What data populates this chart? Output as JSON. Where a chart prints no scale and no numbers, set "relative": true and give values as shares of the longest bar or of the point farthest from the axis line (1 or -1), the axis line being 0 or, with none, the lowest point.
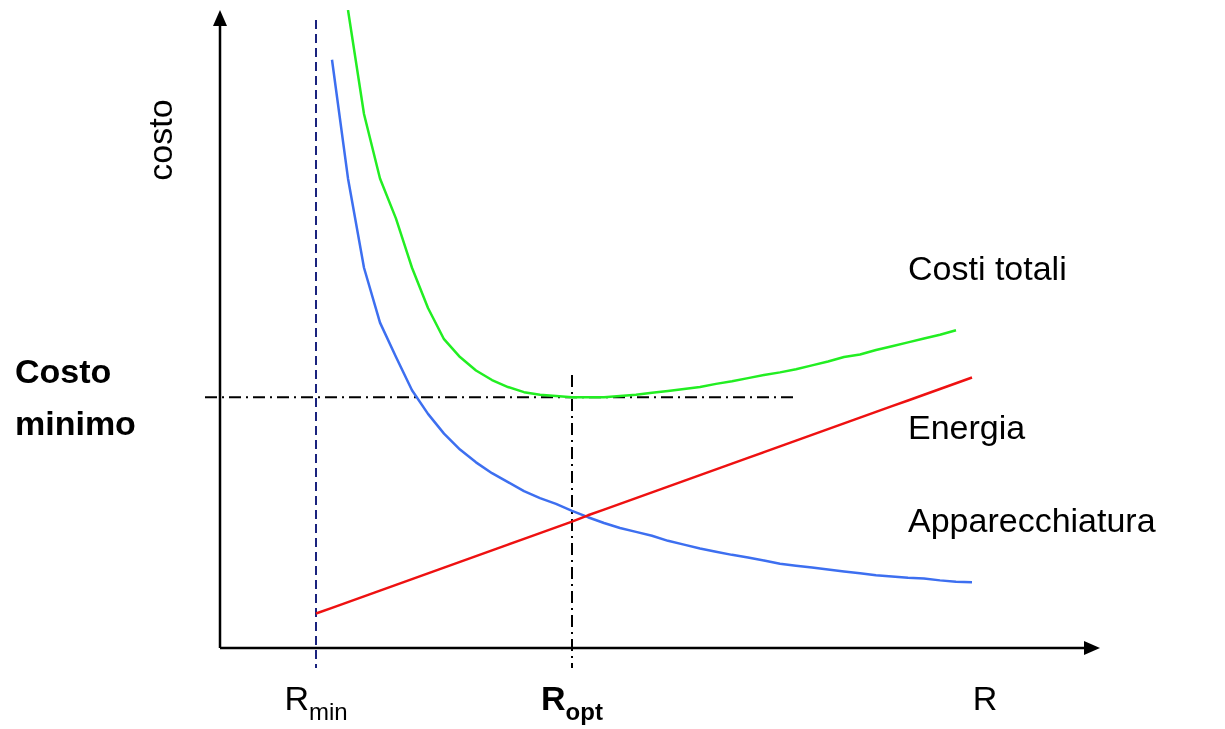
{
  "chart_data": {
    "type": "line",
    "relative": true,
    "xlabel": "R",
    "ylabel": "costo",
    "tick_labels": "x",
    "legend": false,
    "marker": "none",
    "categories": [
      "R$_{min}$",
      null,
      null,
      null,
      null,
      null,
      null,
      null,
      null,
      null,
      null,
      null,
      null,
      null,
      null,
      null,
      "R$_{opt}$",
      null,
      null,
      null,
      null,
      null,
      null,
      null,
      null,
      null,
      null,
      null,
      null,
      null,
      null,
      null,
      null,
      null,
      null,
      null,
      null,
      null,
      null,
      null,
      null,
      null
    ],
    "series": [
      {
        "name": "Costi totali",
        "color": "#22ee22",
        "values": [
          null,
          null,
          1.0,
          0.837,
          0.736,
          0.673,
          0.596,
          0.533,
          0.484,
          0.456,
          0.435,
          0.42,
          0.409,
          0.401,
          0.397,
          0.395,
          0.393,
          0.393,
          0.393,
          0.395,
          0.397,
          0.4,
          0.403,
          0.406,
          0.409,
          0.414,
          0.418,
          0.423,
          0.428,
          0.432,
          0.437,
          0.443,
          0.449,
          0.456,
          0.46,
          0.467,
          0.473,
          0.479,
          0.485,
          0.491,
          0.498,
          null
        ]
      },
      {
        "name": "Energia",
        "color": "#ee1111",
        "values": [
          0.054,
          0.063,
          0.072,
          0.081,
          0.09,
          0.099,
          0.108,
          0.117,
          0.126,
          0.135,
          0.144,
          0.153,
          0.162,
          0.171,
          0.18,
          0.189,
          0.198,
          0.208,
          0.217,
          0.226,
          0.235,
          0.244,
          0.253,
          0.262,
          0.271,
          0.28,
          0.289,
          0.298,
          0.307,
          0.316,
          0.325,
          0.334,
          0.343,
          0.352,
          0.361,
          0.37,
          0.379,
          0.388,
          0.397,
          0.406,
          0.415,
          0.424
        ]
      },
      {
        "name": "Apparecchiatura",
        "color": "#3d6ff0",
        "values": [
          null,
          0.922,
          0.736,
          0.596,
          0.51,
          0.456,
          0.404,
          0.367,
          0.336,
          0.311,
          0.291,
          0.274,
          0.26,
          0.246,
          0.235,
          0.226,
          0.215,
          0.205,
          0.196,
          0.188,
          0.182,
          0.176,
          0.168,
          0.162,
          0.156,
          0.151,
          0.146,
          0.142,
          0.137,
          0.132,
          0.129,
          0.126,
          0.123,
          0.12,
          0.117,
          0.114,
          0.112,
          0.11,
          0.109,
          0.106,
          0.104,
          0.103
        ]
      }
    ],
    "ref_lines": [
      {
        "axis": "x",
        "value": "R$_{min}$",
        "color": "#1a237e",
        "line_style": "dashed"
      },
      {
        "axis": "x",
        "value": "R$_{opt}$",
        "color": "#000000",
        "line_style": "dotted"
      },
      {
        "axis": "y",
        "value": 0.393,
        "label": "Costo minimo",
        "color": "#000000",
        "line_style": "dotted"
      }
    ]
  }
}
